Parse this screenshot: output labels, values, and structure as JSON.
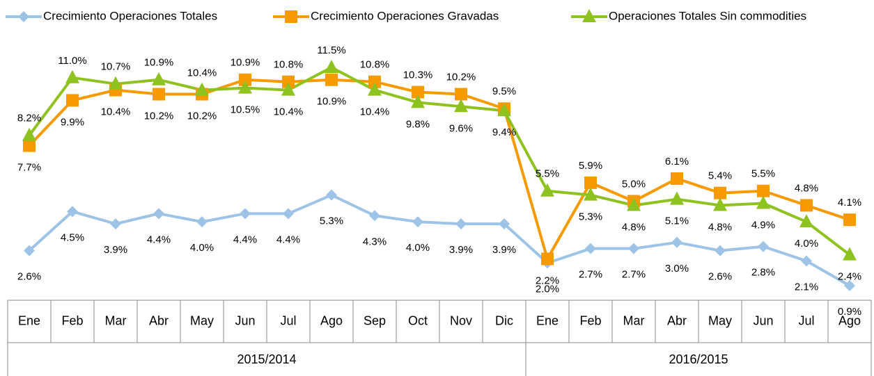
{
  "chart_data": {
    "type": "line",
    "groups": [
      {
        "label": "2015/2014",
        "categories": [
          "Ene",
          "Feb",
          "Mar",
          "Abr",
          "May",
          "Jun",
          "Jul",
          "Ago",
          "Sep",
          "Oct",
          "Nov",
          "Dic"
        ]
      },
      {
        "label": "2016/2015",
        "categories": [
          "Ene",
          "Feb",
          "Mar",
          "Abr",
          "May",
          "Jun",
          "Jul",
          "Ago"
        ]
      }
    ],
    "series": [
      {
        "name": "Crecimiento Operaciones Totales",
        "color": "#9dc3e6",
        "marker": "diamond",
        "values": [
          2.6,
          4.5,
          3.9,
          4.4,
          4.0,
          4.4,
          4.4,
          5.3,
          4.3,
          4.0,
          3.9,
          3.9,
          2.0,
          2.7,
          2.7,
          3.0,
          2.6,
          2.8,
          2.1,
          0.9
        ],
        "value_labels": [
          "2.6%",
          "4.5%",
          "3.9%",
          "4.4%",
          "4.0%",
          "4.4%",
          "4.4%",
          "5.3%",
          "4.3%",
          "4.0%",
          "3.9%",
          "3.9%",
          "2.0%",
          "2.7%",
          "2.7%",
          "3.0%",
          "2.6%",
          "2.8%",
          "2.1%",
          "0.9%"
        ]
      },
      {
        "name": "Crecimiento Operaciones Gravadas",
        "color": "#f79a00",
        "marker": "square",
        "values": [
          7.7,
          9.9,
          10.4,
          10.2,
          10.2,
          10.9,
          10.8,
          10.9,
          10.8,
          10.3,
          10.2,
          9.5,
          2.2,
          5.9,
          5.0,
          6.1,
          5.4,
          5.5,
          4.8,
          4.1
        ],
        "value_labels": [
          "7.7%",
          "9.9%",
          "10.4%",
          "10.2%",
          "10.2%",
          "10.9%",
          "10.8%",
          "10.9%",
          "10.8%",
          "10.3%",
          "10.2%",
          "9.5%",
          "2.2%",
          "5.9%",
          "5.0%",
          "6.1%",
          "5.4%",
          "5.5%",
          "4.8%",
          "4.1%"
        ]
      },
      {
        "name": "Operaciones Totales  Sin commodities",
        "color": "#8dc21f",
        "marker": "triangle",
        "values": [
          8.2,
          11.0,
          10.7,
          10.9,
          10.4,
          10.5,
          10.4,
          11.5,
          10.4,
          9.8,
          9.6,
          9.4,
          5.5,
          5.3,
          4.8,
          5.1,
          4.8,
          4.9,
          4.0,
          2.4
        ],
        "value_labels": [
          "8.2%",
          "11.0%",
          "10.7%",
          "10.9%",
          "10.4%",
          "10.5%",
          "10.4%",
          "11.5%",
          "10.4%",
          "9.8%",
          "9.6%",
          "9.4%",
          "5.5%",
          "5.3%",
          "4.8%",
          "5.1%",
          "4.8%",
          "4.9%",
          "4.0%",
          "2.4%"
        ]
      }
    ],
    "legend": "top"
  }
}
